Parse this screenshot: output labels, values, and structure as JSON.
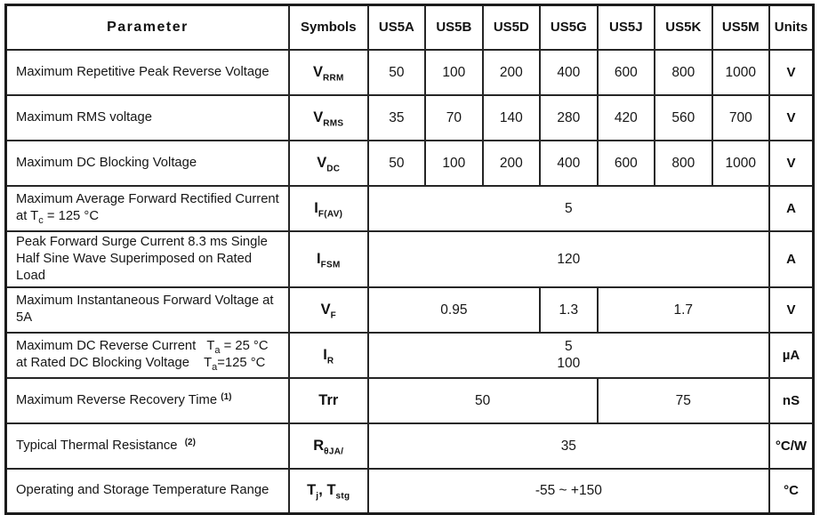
{
  "table": {
    "header": {
      "parameter": "Parameter",
      "symbols": "Symbols",
      "models": [
        "US5A",
        "US5B",
        "US5D",
        "US5G",
        "US5J",
        "US5K",
        "US5M"
      ],
      "units": "Units"
    },
    "rows": [
      {
        "parameter": [
          [
            {
              "t": "Maximum Repetitive Peak Reverse Voltage"
            }
          ]
        ],
        "symbol": [
          {
            "t": "V"
          },
          {
            "t": "RRM",
            "sub": true
          }
        ],
        "values": [
          {
            "text": "50",
            "span": 1
          },
          {
            "text": "100",
            "span": 1
          },
          {
            "text": "200",
            "span": 1
          },
          {
            "text": "400",
            "span": 1
          },
          {
            "text": "600",
            "span": 1
          },
          {
            "text": "800",
            "span": 1
          },
          {
            "text": "1000",
            "span": 1
          }
        ],
        "unit": "V"
      },
      {
        "parameter": [
          [
            {
              "t": "Maximum RMS voltage"
            }
          ]
        ],
        "symbol": [
          {
            "t": "V"
          },
          {
            "t": "RMS",
            "sub": true
          }
        ],
        "values": [
          {
            "text": "35",
            "span": 1
          },
          {
            "text": "70",
            "span": 1
          },
          {
            "text": "140",
            "span": 1
          },
          {
            "text": "280",
            "span": 1
          },
          {
            "text": "420",
            "span": 1
          },
          {
            "text": "560",
            "span": 1
          },
          {
            "text": "700",
            "span": 1
          }
        ],
        "unit": "V"
      },
      {
        "parameter": [
          [
            {
              "t": "Maximum DC Blocking Voltage"
            }
          ]
        ],
        "symbol": [
          {
            "t": "V"
          },
          {
            "t": "DC",
            "sub": true
          }
        ],
        "values": [
          {
            "text": "50",
            "span": 1
          },
          {
            "text": "100",
            "span": 1
          },
          {
            "text": "200",
            "span": 1
          },
          {
            "text": "400",
            "span": 1
          },
          {
            "text": "600",
            "span": 1
          },
          {
            "text": "800",
            "span": 1
          },
          {
            "text": "1000",
            "span": 1
          }
        ],
        "unit": "V"
      },
      {
        "parameter": [
          [
            {
              "t": "Maximum Average Forward Rectified Current"
            }
          ],
          [
            {
              "t": "at T"
            },
            {
              "t": "c",
              "sub": true
            },
            {
              "t": " = 125 °C"
            }
          ]
        ],
        "symbol": [
          {
            "t": "I"
          },
          {
            "t": "F(AV)",
            "sub": true
          }
        ],
        "values": [
          {
            "text": "5",
            "span": 7
          }
        ],
        "unit": "A"
      },
      {
        "parameter": [
          [
            {
              "t": "Peak Forward Surge Current 8.3 ms Single"
            }
          ],
          [
            {
              "t": "Half Sine Wave Superimposed on Rated Load"
            }
          ]
        ],
        "symbol": [
          {
            "t": "I"
          },
          {
            "t": "FSM",
            "sub": true
          }
        ],
        "values": [
          {
            "text": "120",
            "span": 7
          }
        ],
        "unit": "A"
      },
      {
        "parameter": [
          [
            {
              "t": "Maximum Instantaneous Forward Voltage at 5A"
            }
          ]
        ],
        "symbol": [
          {
            "t": "V"
          },
          {
            "t": "F",
            "sub": true
          }
        ],
        "values": [
          {
            "text": "0.95",
            "span": 3
          },
          {
            "text": "1.3",
            "span": 1
          },
          {
            "text": "1.7",
            "span": 3
          }
        ],
        "unit": "V"
      },
      {
        "parameter": [
          [
            {
              "t": "Maximum DC Reverse Current   T"
            },
            {
              "t": "a",
              "sub": true
            },
            {
              "t": " = 25 °C"
            }
          ],
          [
            {
              "t": "at Rated DC Blocking Voltage    T"
            },
            {
              "t": "a",
              "sub": true
            },
            {
              "t": "=125 °C"
            }
          ]
        ],
        "symbol": [
          {
            "t": "I"
          },
          {
            "t": "R",
            "sub": true
          }
        ],
        "values": [
          {
            "text": "5\n100",
            "span": 7
          }
        ],
        "unit": "µA"
      },
      {
        "parameter": [
          [
            {
              "t": "Maximum Reverse Recovery Time "
            },
            {
              "t": "(1)",
              "sup": true
            }
          ]
        ],
        "symbol": [
          {
            "t": "Trr"
          }
        ],
        "values": [
          {
            "text": "50",
            "span": 4
          },
          {
            "text": "75",
            "span": 3
          }
        ],
        "unit": "nS"
      },
      {
        "parameter": [
          [
            {
              "t": "Typical Thermal Resistance  "
            },
            {
              "t": "(2)",
              "sup": true
            }
          ]
        ],
        "symbol": [
          {
            "t": "R"
          },
          {
            "t": "θJA/",
            "sub": true
          }
        ],
        "values": [
          {
            "text": "35",
            "span": 7
          }
        ],
        "unit": "°C/W"
      },
      {
        "parameter": [
          [
            {
              "t": "Operating and Storage Temperature Range"
            }
          ]
        ],
        "symbol": [
          {
            "t": "T"
          },
          {
            "t": "j",
            "sub": true
          },
          {
            "t": ", T"
          },
          {
            "t": "stg",
            "sub": true
          }
        ],
        "values": [
          {
            "text": "-55 ~ +150",
            "span": 7
          }
        ],
        "unit": "°C"
      }
    ]
  }
}
